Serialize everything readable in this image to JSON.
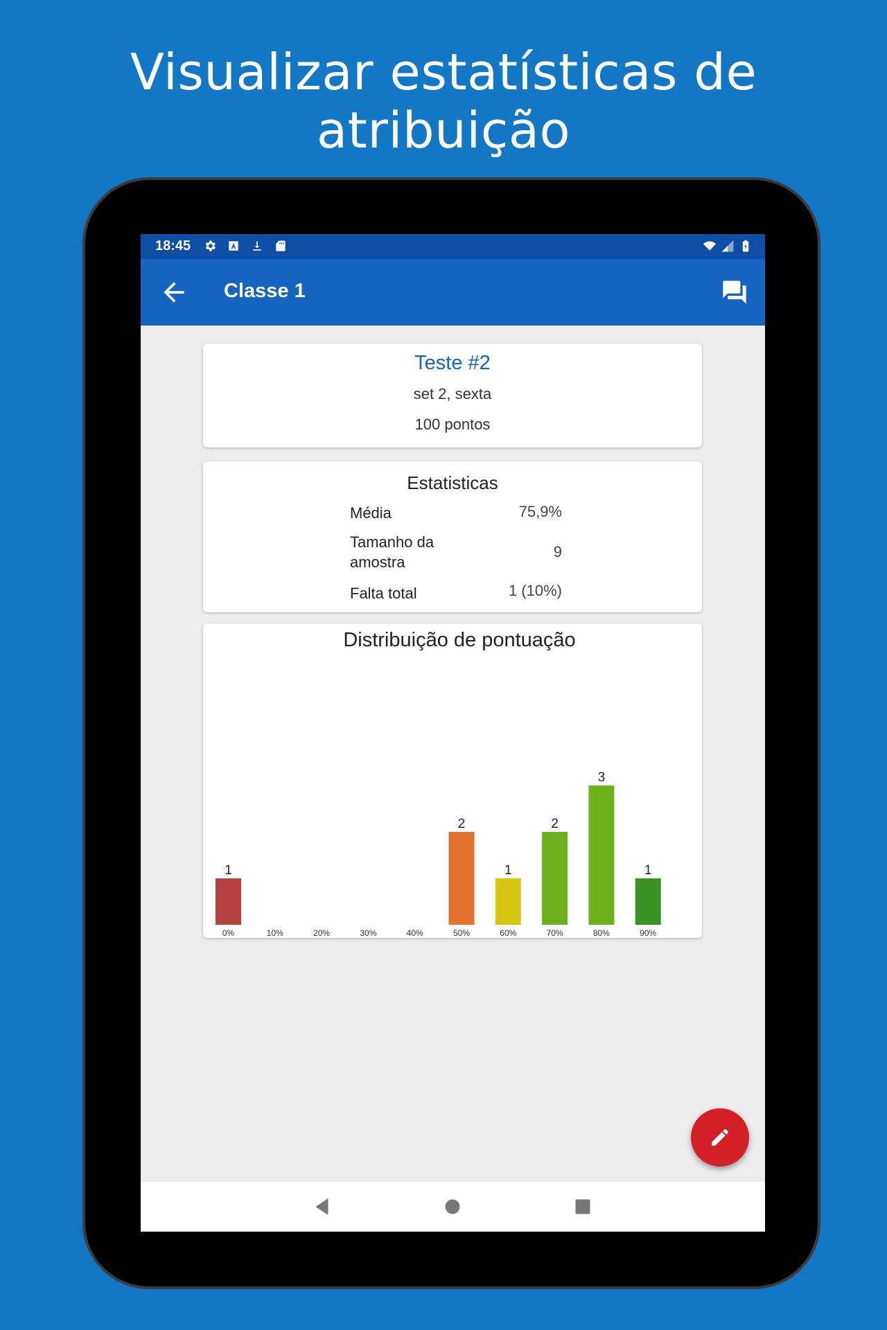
{
  "headline": "Visualizar estatísticas de atribuição",
  "status_bar": {
    "time": "18:45",
    "left_icons": [
      "gear-icon",
      "a-box-icon",
      "download-icon",
      "sd-card-icon"
    ],
    "right_icons": [
      "wifi-icon",
      "signal-icon",
      "battery-icon"
    ]
  },
  "app_bar": {
    "title": "Classe 1",
    "back_icon": "arrow-back-icon",
    "action_icon": "forum-icon",
    "color": "#1565c0"
  },
  "assignment": {
    "title": "Teste #2",
    "date": "set 2, sexta",
    "points": "100 pontos"
  },
  "statistics": {
    "title": "Estatisticas",
    "rows": [
      {
        "label": "Média",
        "value": "75,9%"
      },
      {
        "label": "Tamanho da amostra",
        "value": "9"
      },
      {
        "label": "Falta total",
        "value": "1 (10%)"
      }
    ]
  },
  "chart_data": {
    "type": "bar",
    "title": "Distribuição de pontuação",
    "categories": [
      "0%",
      "10%",
      "20%",
      "30%",
      "40%",
      "50%",
      "60%",
      "70%",
      "80%",
      "90%"
    ],
    "values": [
      1,
      0,
      0,
      0,
      0,
      2,
      1,
      2,
      3,
      1
    ],
    "colors": [
      "#b54141",
      "#b54141",
      "#c0502f",
      "#d0602a",
      "#dc6c2b",
      "#e3722e",
      "#d8c614",
      "#6ab11b",
      "#6cb31b",
      "#3a9224"
    ],
    "ylim": [
      0,
      3
    ]
  },
  "fab": {
    "icon": "pencil-icon",
    "color": "#d32027"
  },
  "nav_bar": {
    "icons": [
      "back-triangle-icon",
      "home-circle-icon",
      "recents-square-icon"
    ]
  }
}
